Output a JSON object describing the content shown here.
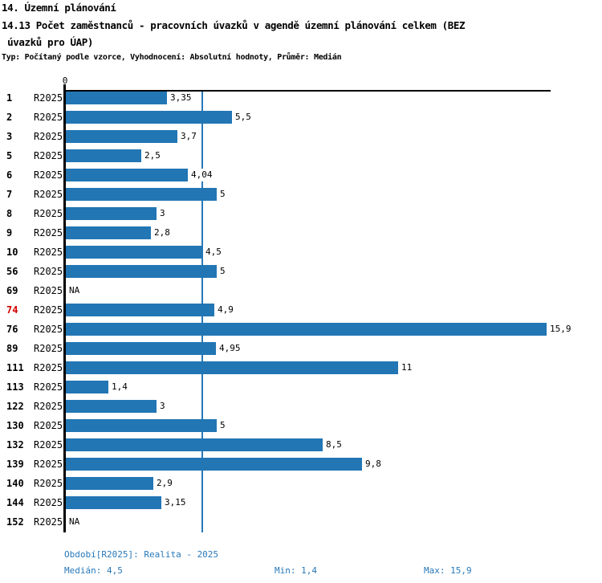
{
  "header": {
    "title_line1": "14. Územní plánování",
    "title_line2": "14.13 Počet zaměstnanců - pracovních úvazků v agendě územní plánování celkem (BEZ",
    "title_line3": " úvazků pro ÚAP)",
    "subtitle": "Typ: Počítaný podle vzorce, Vyhodnocení: Absolutní hodnoty, Průměr: Medián"
  },
  "chart_data": {
    "type": "bar",
    "orientation": "horizontal",
    "title": "14.13 Počet zaměstnanců - pracovních úvazků v agendě územní plánování celkem (BEZ úvazků pro ÚAP)",
    "subtitle": "Typ: Počítaný podle vzorce, Vyhodnocení: Absolutní hodnoty, Průměr: Medián",
    "series_label": "R2025",
    "axis_zero_label": "0",
    "categories": [
      "1",
      "2",
      "3",
      "5",
      "6",
      "7",
      "8",
      "9",
      "10",
      "56",
      "69",
      "74",
      "76",
      "89",
      "111",
      "113",
      "122",
      "130",
      "132",
      "139",
      "140",
      "144",
      "152"
    ],
    "values": [
      3.35,
      5.5,
      3.7,
      2.5,
      4.04,
      5,
      3,
      2.8,
      4.5,
      5,
      null,
      4.9,
      15.9,
      4.95,
      11,
      1.4,
      3,
      5,
      8.5,
      9.8,
      2.9,
      3.15,
      null
    ],
    "value_labels": [
      "3,35",
      "5,5",
      "3,7",
      "2,5",
      "4,04",
      "5",
      "3",
      "2,8",
      "4,5",
      "5",
      "NA",
      "4,9",
      "15,9",
      "4,95",
      "11",
      "1,4",
      "3",
      "5",
      "8,5",
      "9,8",
      "2,9",
      "3,15",
      "NA"
    ],
    "na_label": "NA",
    "highlighted_categories": [
      "74"
    ],
    "median_line_value": 4.5,
    "xlim": [
      0,
      16
    ],
    "grid": false,
    "legend": false,
    "colors": {
      "bar": "#2276b4",
      "blue_text": "#2878b8",
      "highlight_text": "#d40000",
      "axis": "#000000"
    }
  },
  "footer": {
    "period_label": "Období[R2025]: Realita - 2025",
    "median_label": "Medián: 4,5",
    "min_label": "Min: 1,4",
    "max_label": "Max: 15,9"
  }
}
